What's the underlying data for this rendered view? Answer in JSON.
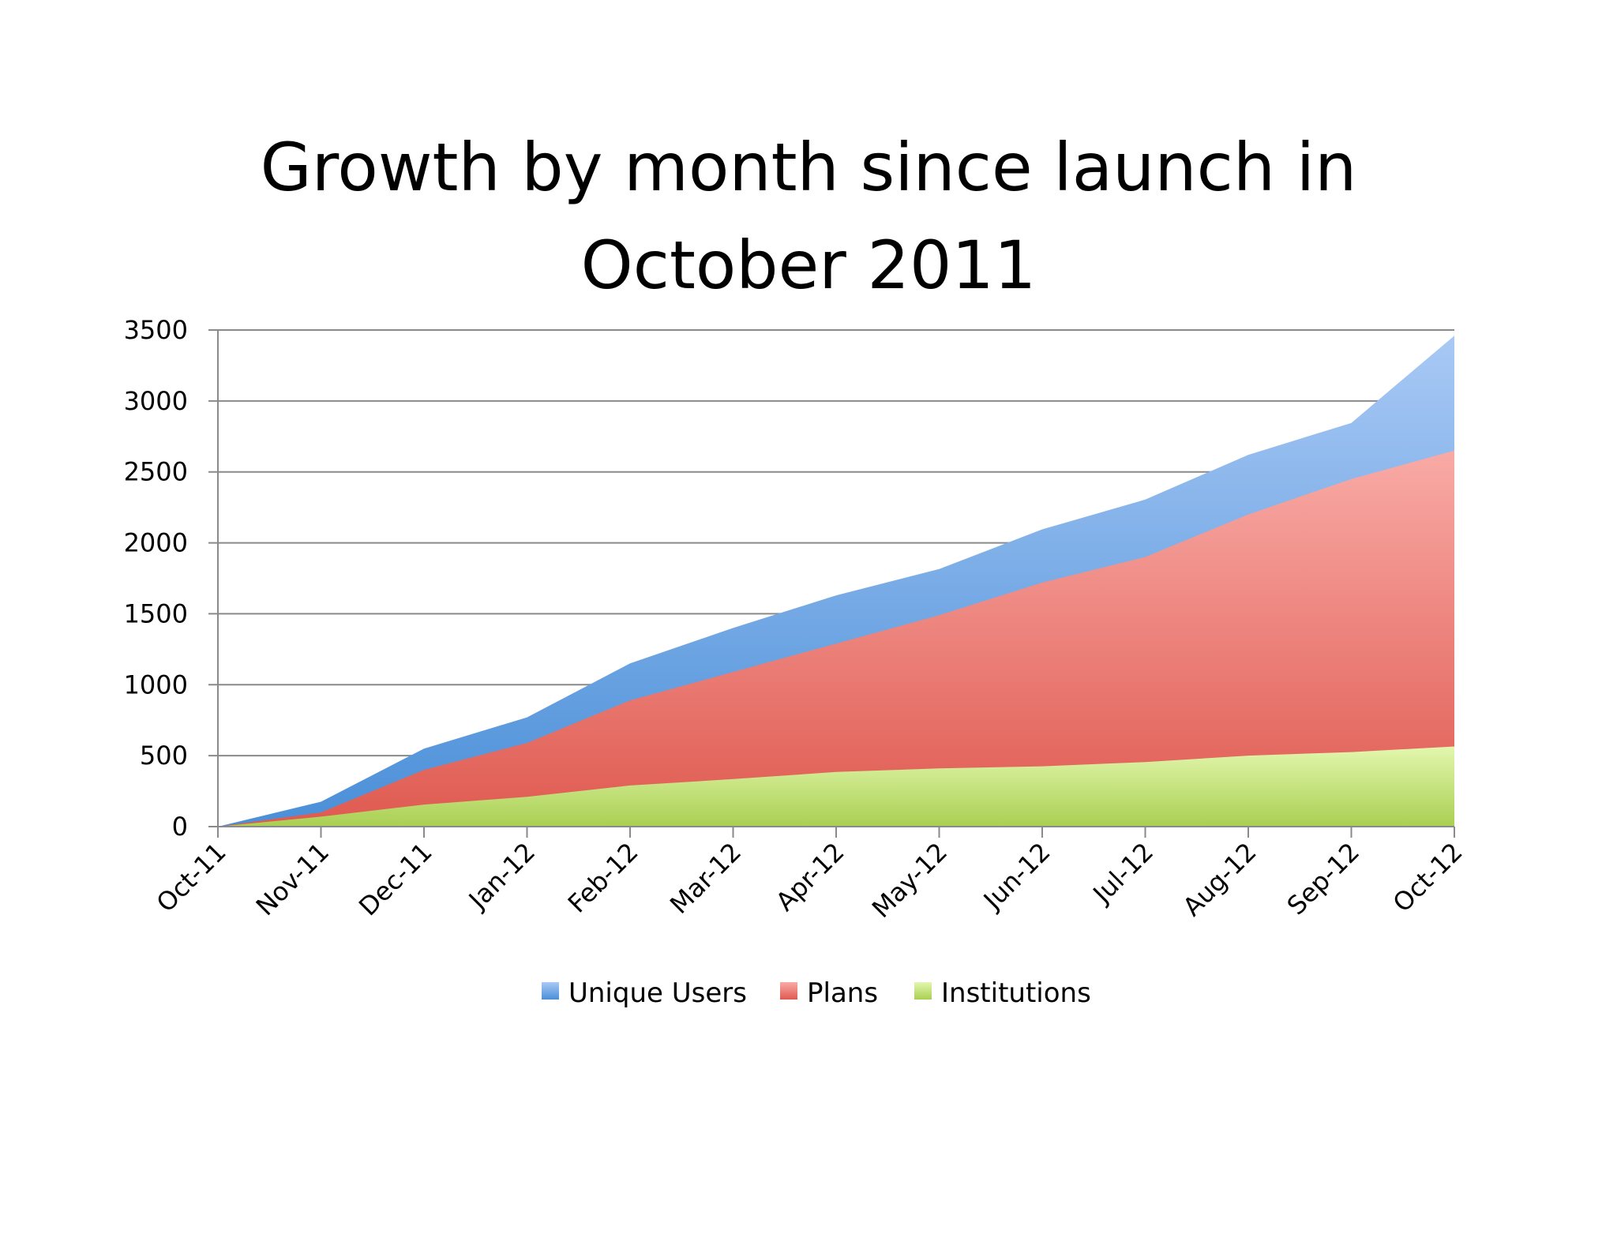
{
  "chart_data": {
    "type": "area",
    "stacked": false,
    "title_lines": [
      "Growth by month since launch in",
      "October 2011"
    ],
    "categories": [
      "Oct-11",
      "Nov-11",
      "Dec-11",
      "Jan-12",
      "Feb-12",
      "Mar-12",
      "Apr-12",
      "May-12",
      "Jun-12",
      "Jul-12",
      "Aug-12",
      "Sep-12",
      "Oct-12"
    ],
    "series": [
      {
        "name": "Unique Users",
        "values": [
          0,
          175,
          550,
          770,
          1150,
          1400,
          1630,
          1815,
          2095,
          2305,
          2620,
          2845,
          3460
        ]
      },
      {
        "name": "Plans",
        "values": [
          0,
          100,
          400,
          590,
          890,
          1090,
          1290,
          1490,
          1720,
          1900,
          2200,
          2450,
          2650
        ]
      },
      {
        "name": "Institutions",
        "values": [
          0,
          70,
          155,
          210,
          290,
          335,
          385,
          410,
          425,
          455,
          500,
          525,
          565
        ]
      }
    ],
    "yticks": [
      0,
      500,
      1000,
      1500,
      2000,
      2500,
      3000,
      3500
    ],
    "ylim": [
      0,
      3500
    ],
    "grid": true,
    "legend_position": "bottom",
    "colors": {
      "Unique Users": [
        "#a9c9f5",
        "#4a8fd8"
      ],
      "Plans": [
        "#f9aaa6",
        "#df5a50"
      ],
      "Institutions": [
        "#e3f7ae",
        "#a9cf52"
      ]
    }
  }
}
